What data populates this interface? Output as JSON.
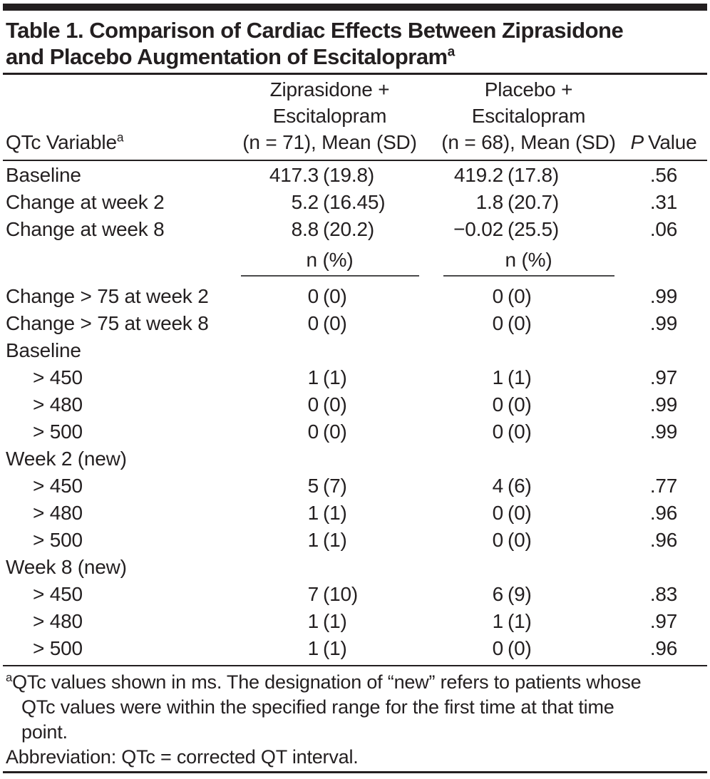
{
  "title": {
    "line1": "Table 1. Comparison of Cardiac Effects Between Ziprasidone",
    "line2": "and Placebo Augmentation of Escitalopram",
    "sup": "a"
  },
  "header": {
    "col1": "QTc Variable",
    "col1_sup": "a",
    "col2_lines": [
      "Ziprasidone +",
      "Escitalopram",
      "(n = 71), Mean (SD)"
    ],
    "col3_lines": [
      "Placebo +",
      "Escitalopram",
      "(n = 68), Mean (SD)"
    ],
    "p_italic": "P",
    "p_text": "Value"
  },
  "subheader": {
    "col2": "n (%)",
    "col3": "n (%)"
  },
  "rows": [
    {
      "label": "Baseline",
      "zip": "417.3",
      "zip_paren": "(19.8)",
      "pla": "419.2",
      "pla_paren": "(17.8)",
      "p": ".56"
    },
    {
      "label": "Change at week 2",
      "zip": "5.2",
      "zip_paren": "(16.45)",
      "pla": "1.8",
      "pla_paren": "(20.7)",
      "p": ".31"
    },
    {
      "label": "Change at week 8",
      "zip": "8.8",
      "zip_paren": "(20.2)",
      "pla": "−0.02",
      "pla_paren": "(25.5)",
      "p": ".06"
    },
    {
      "label": "Change > 75 at week 2",
      "zip": "0",
      "zip_paren": "(0)",
      "pla": "0",
      "pla_paren": "(0)",
      "p": ".99"
    },
    {
      "label": "Change > 75 at week 8",
      "zip": "0",
      "zip_paren": "(0)",
      "pla": "0",
      "pla_paren": "(0)",
      "p": ".99"
    },
    {
      "label": "Baseline"
    },
    {
      "label": "> 450",
      "zip": "1",
      "zip_paren": "(1)",
      "pla": "1",
      "pla_paren": "(1)",
      "p": ".97"
    },
    {
      "label": "> 480",
      "zip": "0",
      "zip_paren": "(0)",
      "pla": "0",
      "pla_paren": "(0)",
      "p": ".99"
    },
    {
      "label": "> 500",
      "zip": "0",
      "zip_paren": "(0)",
      "pla": "0",
      "pla_paren": "(0)",
      "p": ".99"
    },
    {
      "label": "Week 2 (new)"
    },
    {
      "label": "> 450",
      "zip": "5",
      "zip_paren": "(7)",
      "pla": "4",
      "pla_paren": "(6)",
      "p": ".77"
    },
    {
      "label": "> 480",
      "zip": "1",
      "zip_paren": "(1)",
      "pla": "0",
      "pla_paren": "(0)",
      "p": ".96"
    },
    {
      "label": "> 500",
      "zip": "1",
      "zip_paren": "(1)",
      "pla": "0",
      "pla_paren": "(0)",
      "p": ".96"
    },
    {
      "label": "Week 8 (new)"
    },
    {
      "label": "> 450",
      "zip": "7",
      "zip_paren": "(10)",
      "pla": "6",
      "pla_paren": "(9)",
      "p": ".83"
    },
    {
      "label": "> 480",
      "zip": "1",
      "zip_paren": "(1)",
      "pla": "1",
      "pla_paren": "(1)",
      "p": ".97"
    },
    {
      "label": "> 500",
      "zip": "1",
      "zip_paren": "(1)",
      "pla": "0",
      "pla_paren": "(0)",
      "p": ".96"
    }
  ],
  "footnotes": {
    "marker": "a",
    "line1": "QTc values shown in ms. The designation of “new” refers to patients whose",
    "line2": "QTc values were within the specified range for the first time at that time",
    "line3": "point.",
    "abbreviation": "Abbreviation: QTc = corrected QT interval."
  },
  "colors": {
    "text": "#231f20",
    "rule": "#231f20",
    "subheader_rule": "#4a4a4c",
    "background": "#ffffff"
  }
}
